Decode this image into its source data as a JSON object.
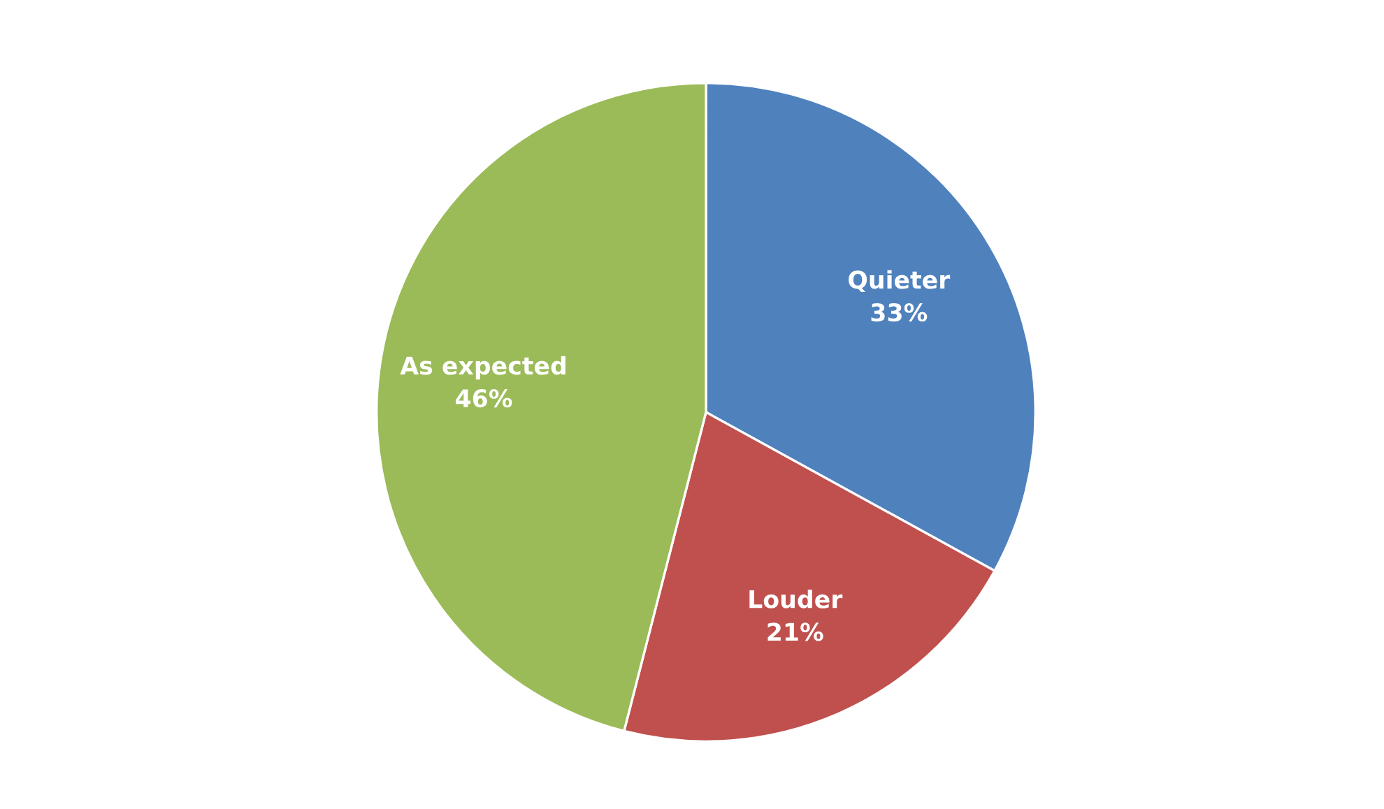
{
  "chart_data": {
    "type": "pie",
    "categories": [
      "Quieter",
      "Louder",
      "As expected"
    ],
    "values": [
      33,
      21,
      46
    ],
    "value_labels": [
      "33%",
      "21%",
      "46%"
    ],
    "colors": [
      "#4f81bd",
      "#c0504d",
      "#9bbb59"
    ],
    "legend": false
  }
}
